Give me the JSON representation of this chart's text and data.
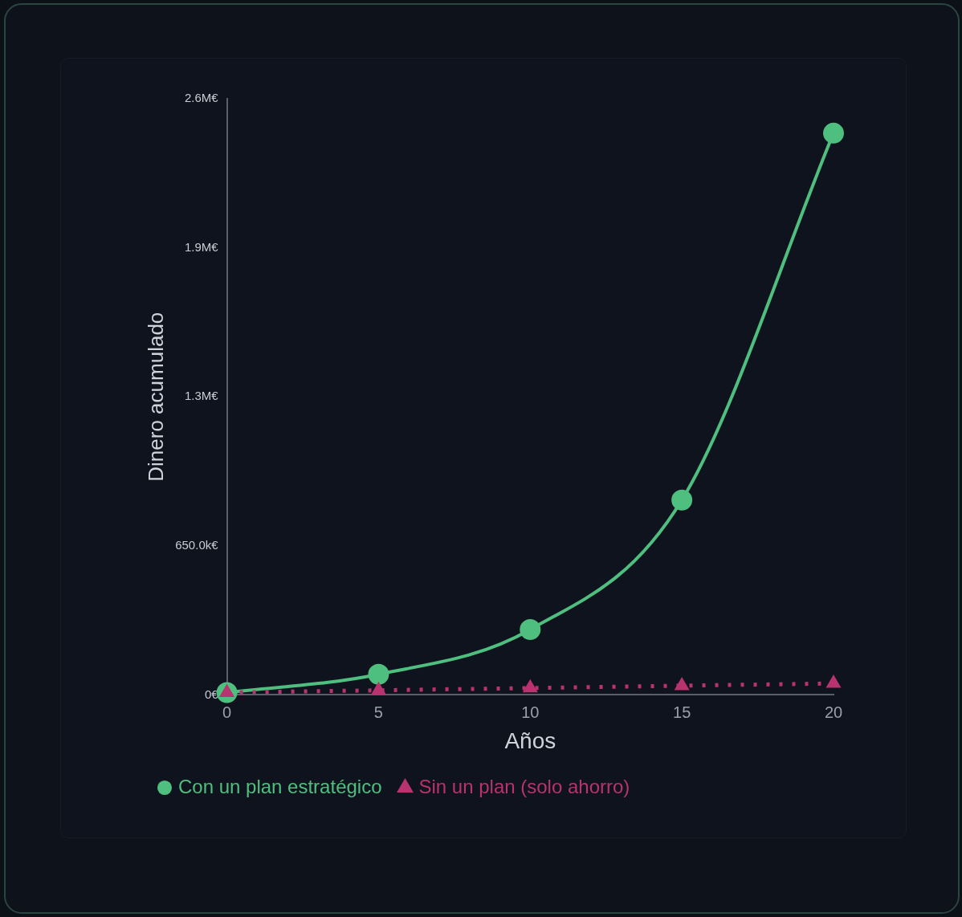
{
  "chart_data": {
    "type": "line",
    "xlabel": "Años",
    "ylabel": "Dinero acumulado",
    "x": [
      0,
      5,
      10,
      15,
      20
    ],
    "series": [
      {
        "name": "Con un plan estratégico",
        "color": "#4fbf7f",
        "marker": "circle",
        "line_style": "solid",
        "values": [
          10000,
          90000,
          285000,
          850000,
          2450000
        ]
      },
      {
        "name": "Sin un plan (solo ahorro)",
        "color": "#b8336f",
        "marker": "triangle",
        "line_style": "dotted",
        "values": [
          10000,
          20000,
          30000,
          40000,
          50000
        ]
      }
    ],
    "xlim": [
      0,
      20
    ],
    "xticks": [
      0,
      5,
      10,
      15,
      20
    ],
    "ylim": [
      0,
      2600000
    ],
    "yticks": [
      {
        "value": 0,
        "label": "0€"
      },
      {
        "value": 650000,
        "label": "650.0k€"
      },
      {
        "value": 1300000,
        "label": "1.3M€"
      },
      {
        "value": 1950000,
        "label": "1.9M€"
      },
      {
        "value": 2600000,
        "label": "2.6M€"
      }
    ],
    "grid": false,
    "legend": "bottom"
  }
}
